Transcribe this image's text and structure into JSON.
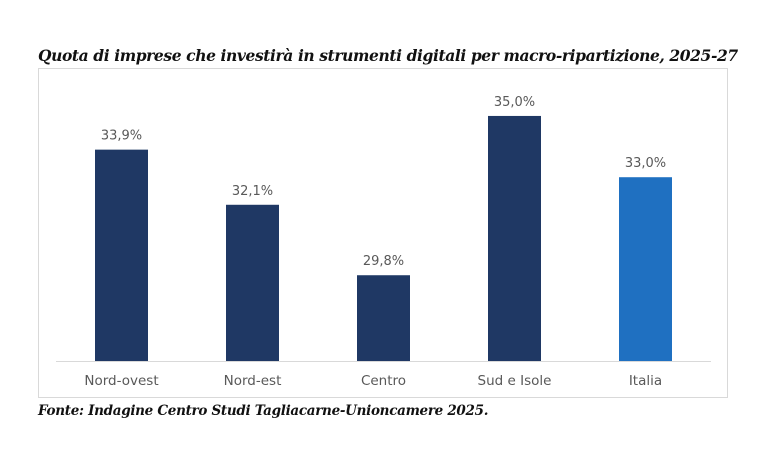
{
  "chart_data": {
    "type": "bar",
    "title": "Quota di imprese che investirà in strumenti digitali per macro-ripartizione, 2025-27",
    "categories": [
      "Nord-ovest",
      "Nord-est",
      "Centro",
      "Sud e Isole",
      "Italia"
    ],
    "values": [
      33.9,
      32.1,
      29.8,
      35.0,
      33.0
    ],
    "data_labels": [
      "33,9%",
      "32,1%",
      "29,8%",
      "35,0%",
      "33,0%"
    ],
    "colors": [
      "#1f3864",
      "#1f3864",
      "#1f3864",
      "#1f3864",
      "#1f70c1"
    ],
    "xlabel": "",
    "ylabel": "",
    "ylim": [
      27.0,
      36.5
    ],
    "grid": false,
    "legend": "none",
    "source": "Fonte: Indagine Centro Studi Tagliacarne-Unioncamere 2025."
  }
}
